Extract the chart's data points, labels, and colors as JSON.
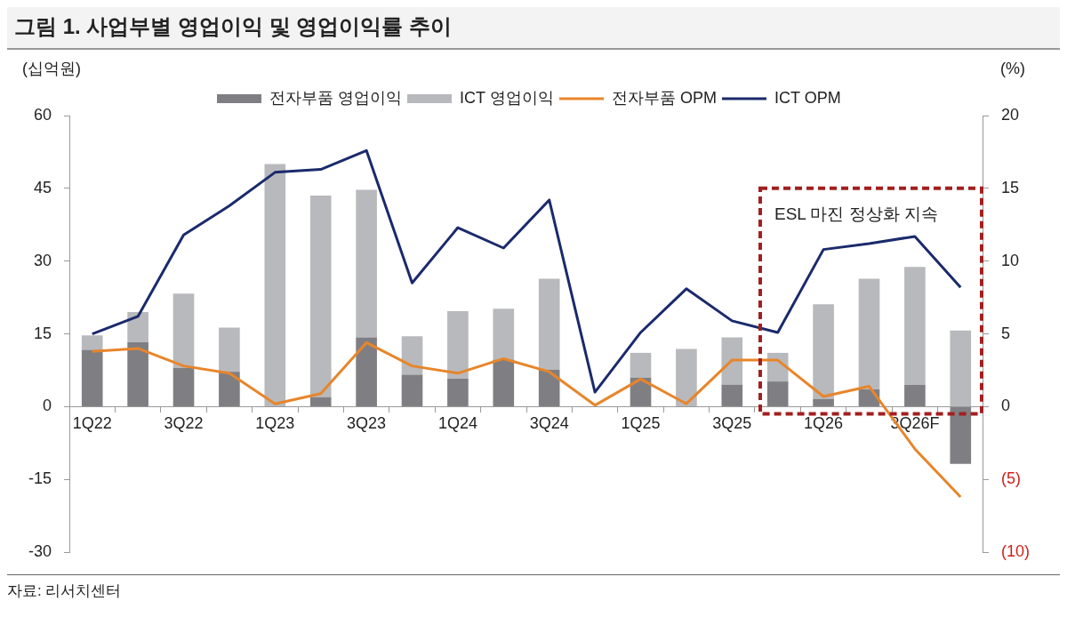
{
  "chart_data": {
    "type": "bar",
    "title": "그림 1. 사업부별 영업이익 및 영업이익률 추이",
    "ylabel": "(십억원)",
    "y2label": "(%)",
    "categories": [
      "1Q22",
      null,
      "3Q22",
      null,
      "1Q23",
      null,
      "3Q23",
      null,
      "1Q24",
      null,
      "3Q24",
      null,
      "1Q25",
      null,
      "3Q25",
      null,
      "1Q26",
      null,
      "3Q26F",
      null
    ],
    "stacked": true,
    "series": [
      {
        "name": "전자부품 영업이익",
        "color": "#7f7f83",
        "values": [
          11.7,
          13.3,
          8,
          7.2,
          0,
          2,
          14.3,
          6.6,
          5.8,
          9.7,
          7.6,
          0,
          6,
          0,
          4.5,
          5.2,
          1.6,
          3.6,
          4.5,
          -11.8
        ]
      },
      {
        "name": "ICT 영업이익",
        "color": "#b8b9bc",
        "values": [
          3,
          6.2,
          15.3,
          9.1,
          50,
          41.5,
          30.4,
          7.9,
          13.9,
          10.5,
          18.8,
          0,
          5.1,
          11.9,
          9.8,
          5.9,
          19.5,
          22.8,
          24.3,
          15.7
        ]
      },
      {
        "name": "전자부품 OPM",
        "type": "line",
        "axis": "y2",
        "color": "#e8852a",
        "values": [
          3.8,
          4.0,
          2.8,
          2.3,
          0.2,
          0.9,
          4.4,
          2.8,
          2.3,
          3.3,
          2.4,
          0.1,
          1.9,
          0.2,
          3.2,
          3.2,
          0.7,
          1.4,
          -2.9,
          -6.2
        ]
      },
      {
        "name": "ICT OPM",
        "type": "line",
        "axis": "y2",
        "color": "#1a2a6c",
        "values": [
          5.0,
          6.2,
          11.8,
          13.8,
          16.1,
          16.3,
          17.6,
          8.5,
          12.3,
          10.9,
          14.2,
          1.0,
          5.1,
          8.1,
          5.9,
          5.1,
          10.8,
          11.2,
          11.7,
          8.2
        ]
      }
    ],
    "ylim": [
      -30,
      60
    ],
    "yticks": [
      -30,
      -15,
      0,
      15,
      30,
      45,
      60
    ],
    "y2lim": [
      -10,
      20
    ],
    "y2ticks": [
      {
        "value": -10,
        "label": "(10)"
      },
      {
        "value": -5,
        "label": "(5)"
      },
      0,
      5,
      10,
      15,
      20
    ],
    "legend": "top",
    "grid": false,
    "marker": "none",
    "line_style": "solid",
    "annotations": [
      "ESL 마진 정상화 지속",
      "자료: 리서치센터"
    ]
  }
}
